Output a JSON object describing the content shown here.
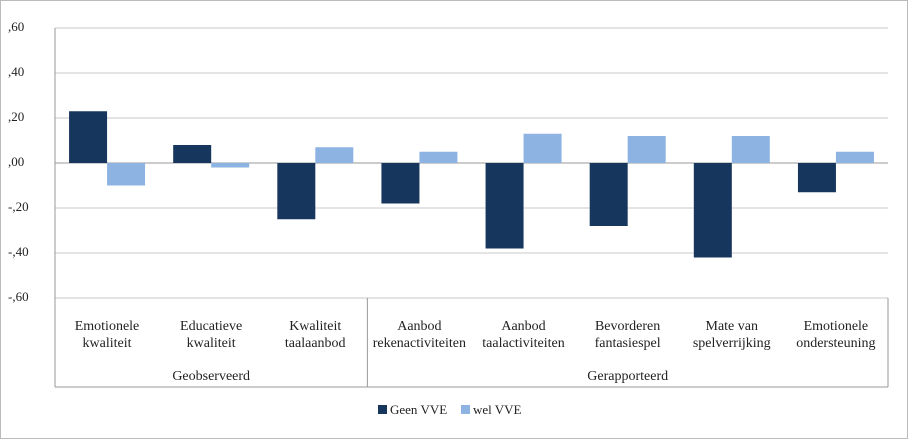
{
  "chart_data": {
    "type": "bar",
    "categories": [
      "Emotionele\nkwaliteit",
      "Educatieve\nkwaliteit",
      "Kwaliteit\ntaalaanbod",
      "Aanbod\nrekenactiviteiten",
      "Aanbod\ntaalactiviteiten",
      "Bevorderen\nfantasiespel",
      "Mate van\nspelverrijking",
      "Emotionele\nondersteuning"
    ],
    "group_labels": [
      "Geobserveerd",
      "Gerapporteerd"
    ],
    "series": [
      {
        "name": "Geen VVE",
        "color": "#17365d",
        "values": [
          0.23,
          0.08,
          -0.25,
          -0.18,
          -0.38,
          -0.28,
          -0.42,
          -0.13
        ]
      },
      {
        "name": "wel VVE",
        "color": "#8db3e2",
        "values": [
          -0.1,
          -0.02,
          0.07,
          0.05,
          0.13,
          0.12,
          0.12,
          0.05
        ]
      }
    ],
    "ylim": [
      -0.6,
      0.6
    ],
    "yticks": [
      {
        "value": -0.6,
        "label": "-,60"
      },
      {
        "value": -0.4,
        "label": "-,40"
      },
      {
        "value": -0.2,
        "label": "-,20"
      },
      {
        "value": 0,
        "label": ",00"
      },
      {
        "value": 0.2,
        "label": ",20"
      },
      {
        "value": 0.4,
        "label": ",40"
      },
      {
        "value": 0.6,
        "label": ",60"
      }
    ],
    "grid": true,
    "legend": "bottom"
  }
}
